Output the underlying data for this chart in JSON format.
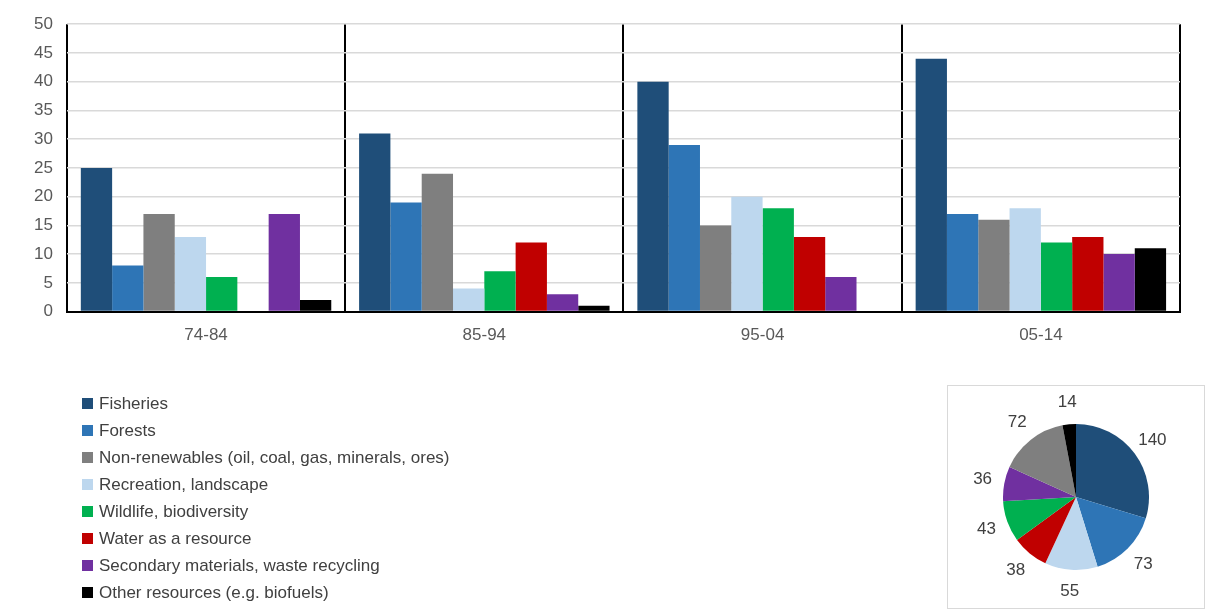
{
  "chart_data": [
    {
      "type": "bar",
      "categories": [
        "74-84",
        "85-94",
        "95-04",
        "05-14"
      ],
      "series": [
        {
          "name": "Fisheries",
          "color": "#1f4e79",
          "values": [
            25,
            31,
            40,
            44
          ]
        },
        {
          "name": "Forests",
          "color": "#2e75b6",
          "values": [
            8,
            19,
            29,
            17
          ]
        },
        {
          "name": "Non-renewables (oil, coal, gas, minerals, ores)",
          "color": "#7f7f7f",
          "values": [
            17,
            24,
            15,
            16
          ]
        },
        {
          "name": "Recreation, landscape",
          "color": "#bdd7ee",
          "values": [
            13,
            4,
            20,
            18
          ]
        },
        {
          "name": "Wildlife, biodiversity",
          "color": "#00b050",
          "values": [
            6,
            7,
            18,
            12
          ]
        },
        {
          "name": "Water as a resource",
          "color": "#c00000",
          "values": [
            0,
            12,
            13,
            13
          ]
        },
        {
          "name": "Secondary materials, waste recycling",
          "color": "#7030a0",
          "values": [
            17,
            3,
            6,
            10
          ]
        },
        {
          "name": "Other resources (e.g. biofuels)",
          "color": "#000000",
          "values": [
            2,
            1,
            0,
            11
          ]
        }
      ],
      "ylim": [
        0,
        50
      ],
      "yticks": [
        0,
        5,
        10,
        15,
        20,
        25,
        30,
        35,
        40,
        45,
        50
      ],
      "grid": true,
      "legend": "bottom left"
    },
    {
      "type": "pie",
      "categories": [
        null,
        null,
        null,
        null,
        null,
        null,
        null,
        null
      ],
      "values": [
        140,
        73,
        55,
        38,
        43,
        36,
        72,
        14
      ],
      "colors": [
        "#1f4e79",
        "#2e75b6",
        "#bdd7ee",
        "#c00000",
        "#00b050",
        "#7030a0",
        "#7f7f7f",
        "#000000"
      ],
      "data_labels": true
    }
  ]
}
